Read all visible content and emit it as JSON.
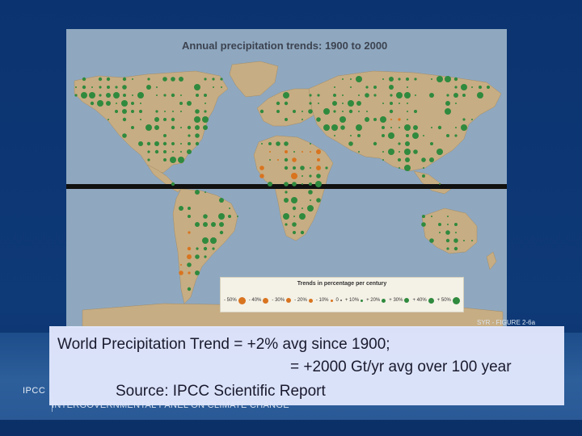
{
  "slide": {
    "background": "#0c3470",
    "footer": {
      "logo": "IPCC",
      "org": "INTERGOVERNMENTAL PANEL ON CLIMATE CHANGE"
    }
  },
  "map": {
    "title": "Annual precipitation trends: 1900 to 2000",
    "figure_ref": "SYR - FIGURE 2-6a",
    "land_color": "#c7ad83",
    "ocean_color": "#8fa8c0",
    "wet_color": "#2f8a3e",
    "dry_color": "#d9741f",
    "legend": {
      "title": "Trends in percentage per century",
      "items": [
        {
          "label": "- 50%",
          "color": "#d9741f",
          "size": 9
        },
        {
          "label": "- 40%",
          "color": "#d9741f",
          "size": 7
        },
        {
          "label": "- 30%",
          "color": "#d9741f",
          "size": 6
        },
        {
          "label": "- 20%",
          "color": "#d9741f",
          "size": 5
        },
        {
          "label": "- 10%",
          "color": "#d9741f",
          "size": 3
        },
        {
          "label": "0",
          "color": "#555555",
          "size": 2
        },
        {
          "label": "+ 10%",
          "color": "#2f8a3e",
          "size": 3
        },
        {
          "label": "+ 20%",
          "color": "#2f8a3e",
          "size": 5
        },
        {
          "label": "+ 30%",
          "color": "#2f8a3e",
          "size": 6
        },
        {
          "label": "+ 40%",
          "color": "#2f8a3e",
          "size": 7
        },
        {
          "label": "+ 50%",
          "color": "#2f8a3e",
          "size": 9
        }
      ]
    }
  },
  "caption": {
    "line1": "World Precipitation Trend = +2%  avg since 1900;",
    "line2": "= +2000 Gt/yr avg over 100 year",
    "line3": "Source: IPCC Scientific Report"
  }
}
